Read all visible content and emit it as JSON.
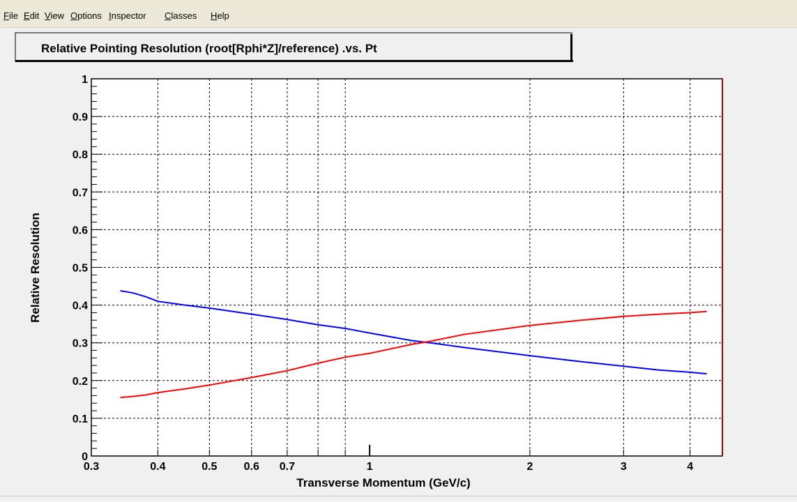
{
  "menu": {
    "items": [
      {
        "ul": "F",
        "rest": "ile"
      },
      {
        "ul": "E",
        "rest": "dit"
      },
      {
        "ul": "V",
        "rest": "iew"
      },
      {
        "ul": "O",
        "rest": "ptions"
      },
      {
        "ul": "I",
        "rest": "nspector"
      },
      {
        "ul": "C",
        "rest": "lasses"
      },
      {
        "ul": "H",
        "rest": "elp"
      }
    ]
  },
  "colors": {
    "series_red": "#ff0000",
    "series_blue": "#0000ff",
    "frame": "#000000",
    "right_edge": "#aa0000",
    "plot_bg": "#ffffff",
    "canvas_bg": "#f0f0f0"
  },
  "chart_data": {
    "type": "line",
    "title": "Relative Pointing Resolution (root[Rphi*Z]/reference) .vs. Pt",
    "xlabel": "Transverse Momentum (GeV/c)",
    "ylabel": "Relative Resolution",
    "x_scale": "log",
    "xlim": [
      0.3,
      4.6
    ],
    "ylim": [
      0,
      1
    ],
    "grid": true,
    "x_ticks": [
      {
        "v": 0.3,
        "label": "0.3"
      },
      {
        "v": 0.4,
        "label": "0.4"
      },
      {
        "v": 0.5,
        "label": "0.5"
      },
      {
        "v": 0.6,
        "label": "0.6"
      },
      {
        "v": 0.7,
        "label": "0.7"
      },
      {
        "v": 1,
        "label": "1"
      },
      {
        "v": 2,
        "label": "2"
      },
      {
        "v": 3,
        "label": "3"
      },
      {
        "v": 4,
        "label": "4"
      }
    ],
    "x_grid": [
      0.4,
      0.5,
      0.6,
      0.7,
      0.8,
      0.9,
      2,
      3,
      4
    ],
    "y_ticks": [
      {
        "v": 0,
        "label": "0"
      },
      {
        "v": 0.1,
        "label": "0.1"
      },
      {
        "v": 0.2,
        "label": "0.2"
      },
      {
        "v": 0.3,
        "label": "0.3"
      },
      {
        "v": 0.4,
        "label": "0.4"
      },
      {
        "v": 0.5,
        "label": "0.5"
      },
      {
        "v": 0.6,
        "label": "0.6"
      },
      {
        "v": 0.7,
        "label": "0.7"
      },
      {
        "v": 0.8,
        "label": "0.8"
      },
      {
        "v": 0.9,
        "label": "0.9"
      },
      {
        "v": 1,
        "label": "1"
      }
    ],
    "series": [
      {
        "color": "#0000ff",
        "points": [
          [
            0.34,
            0.438
          ],
          [
            0.36,
            0.432
          ],
          [
            0.38,
            0.422
          ],
          [
            0.4,
            0.41
          ],
          [
            0.45,
            0.4
          ],
          [
            0.5,
            0.392
          ],
          [
            0.6,
            0.376
          ],
          [
            0.7,
            0.362
          ],
          [
            0.8,
            0.348
          ],
          [
            0.9,
            0.338
          ],
          [
            1.0,
            0.326
          ],
          [
            1.2,
            0.306
          ],
          [
            1.3,
            0.3
          ],
          [
            1.5,
            0.288
          ],
          [
            2.0,
            0.266
          ],
          [
            2.5,
            0.25
          ],
          [
            3.0,
            0.238
          ],
          [
            3.5,
            0.228
          ],
          [
            4.0,
            0.222
          ],
          [
            4.3,
            0.218
          ]
        ]
      },
      {
        "color": "#ff0000",
        "points": [
          [
            0.34,
            0.155
          ],
          [
            0.36,
            0.158
          ],
          [
            0.38,
            0.162
          ],
          [
            0.4,
            0.168
          ],
          [
            0.45,
            0.178
          ],
          [
            0.5,
            0.188
          ],
          [
            0.6,
            0.208
          ],
          [
            0.7,
            0.226
          ],
          [
            0.8,
            0.246
          ],
          [
            0.9,
            0.262
          ],
          [
            1.0,
            0.272
          ],
          [
            1.2,
            0.296
          ],
          [
            1.3,
            0.304
          ],
          [
            1.5,
            0.322
          ],
          [
            2.0,
            0.346
          ],
          [
            2.5,
            0.36
          ],
          [
            3.0,
            0.37
          ],
          [
            3.5,
            0.376
          ],
          [
            4.0,
            0.38
          ],
          [
            4.3,
            0.383
          ]
        ]
      }
    ]
  }
}
